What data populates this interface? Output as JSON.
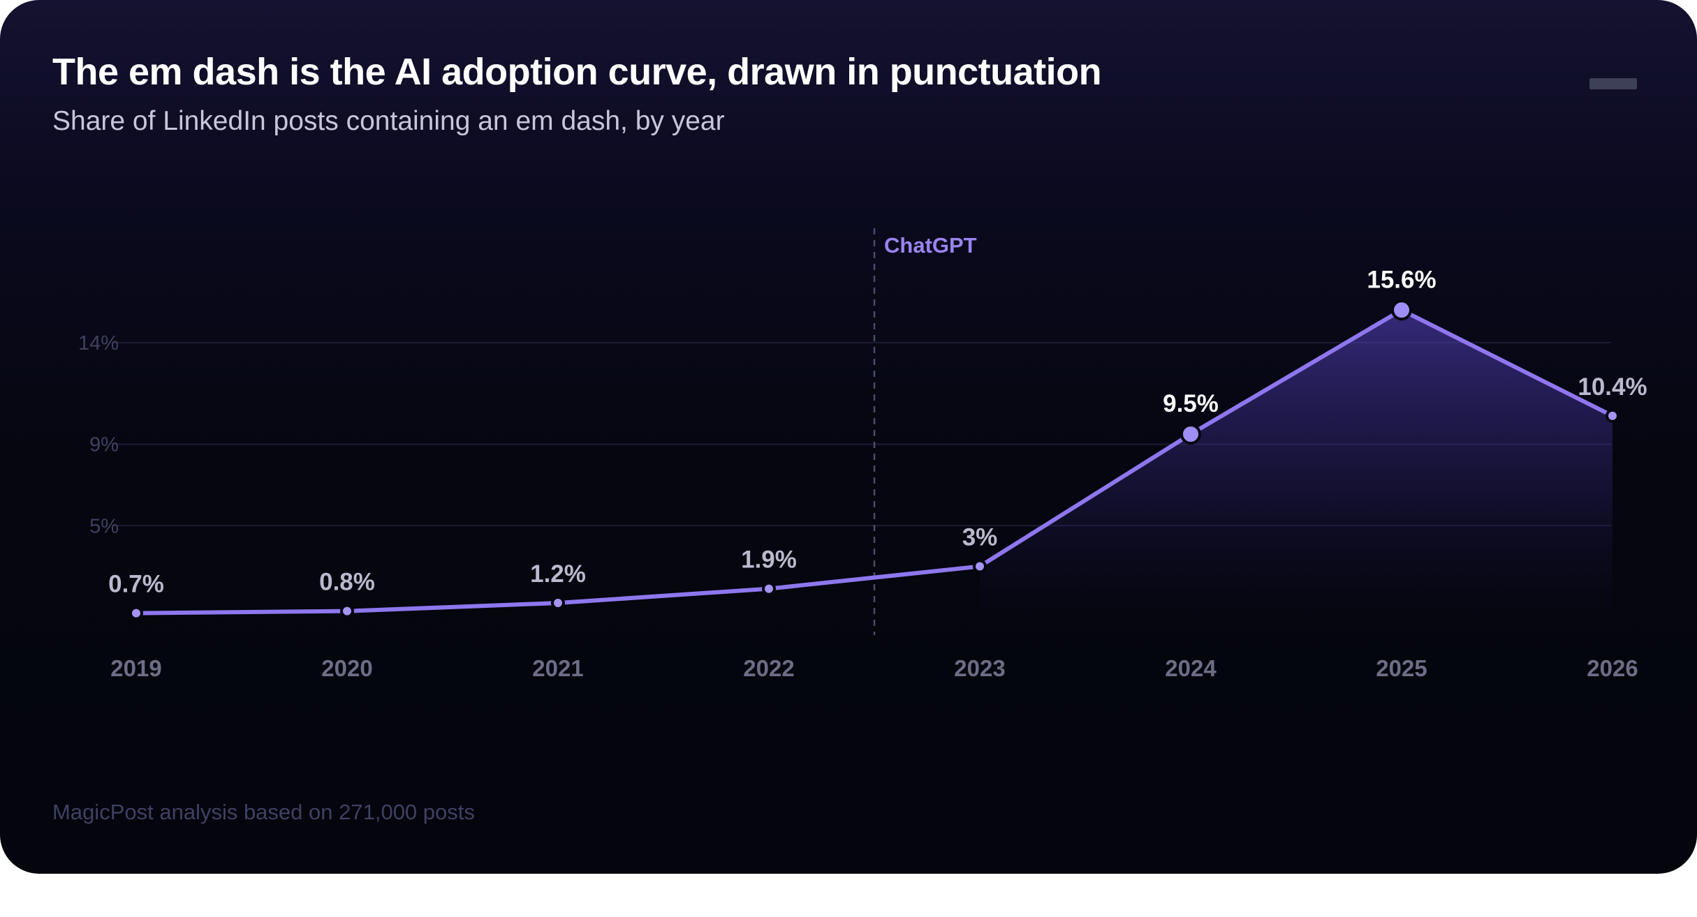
{
  "header": {
    "title": "The em dash is the AI adoption curve, drawn in punctuation",
    "subtitle": "Share of LinkedIn posts containing an em dash, by year"
  },
  "footer": {
    "note": "MagicPost analysis based on 271,000 posts"
  },
  "colors": {
    "line": "#8e77ee",
    "point": "#a493f2",
    "highlight_point": "#9f8ef5",
    "area": "#5a45c8",
    "grid": "#1b1d33",
    "annotation": "#9a84ef"
  },
  "chart_data": {
    "type": "line",
    "x": [
      "2019",
      "2020",
      "2021",
      "2022",
      "2023",
      "2024",
      "2025",
      "2026"
    ],
    "series": [
      {
        "values": [
          0.7,
          0.8,
          1.2,
          1.9,
          3.0,
          9.5,
          15.6,
          10.4
        ],
        "labels": [
          "0.7%",
          "0.8%",
          "1.2%",
          "1.9%",
          "3%",
          "9.5%",
          "15.6%",
          "10.4%"
        ],
        "highlighted": [
          false,
          false,
          false,
          false,
          false,
          true,
          true,
          false
        ]
      }
    ],
    "yticks": [
      {
        "value": 14,
        "label": "14%"
      },
      {
        "value": 9,
        "label": "9%"
      },
      {
        "value": 5,
        "label": "5%"
      }
    ],
    "ylim": [
      0,
      16
    ],
    "grid": true,
    "shaded_area_from": "2023",
    "annotation": {
      "label": "ChatGPT",
      "between": [
        "2022",
        "2023"
      ],
      "style": "dashed-vertical-line"
    }
  }
}
